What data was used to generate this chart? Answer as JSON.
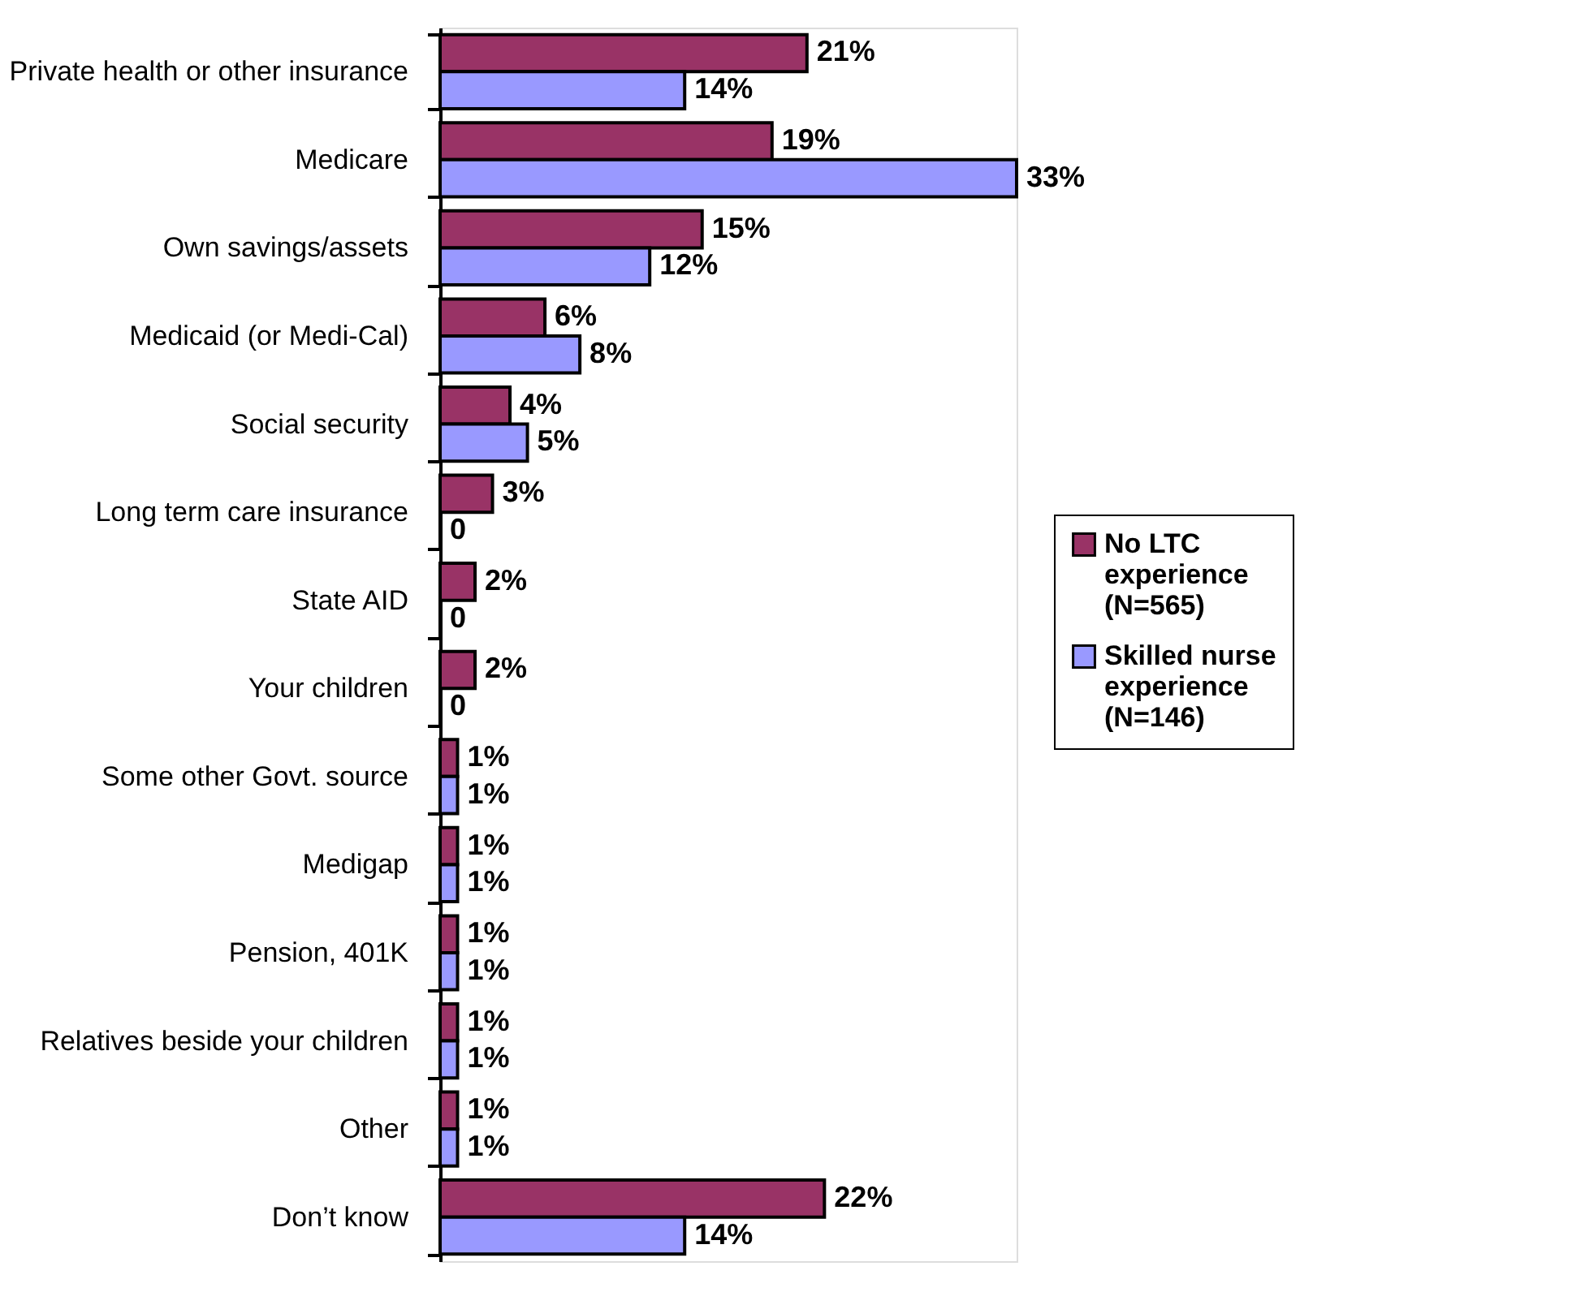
{
  "chart_data": {
    "type": "bar",
    "orientation": "horizontal",
    "categories": [
      "Private health or other insurance",
      "Medicare",
      "Own savings/assets",
      "Medicaid (or Medi-Cal)",
      "Social security",
      "Long term care insurance",
      "State AID",
      "Your children",
      "Some other Govt. source",
      "Medigap",
      "Pension, 401K",
      "Relatives beside your children",
      "Other",
      "Don’t know"
    ],
    "series": [
      {
        "name": "No LTC experience (N=565)",
        "color": "#993366",
        "values": [
          21,
          19,
          15,
          6,
          4,
          3,
          2,
          2,
          1,
          1,
          1,
          1,
          1,
          22
        ],
        "value_labels": [
          "21%",
          "19%",
          "15%",
          "6%",
          "4%",
          "3%",
          "2%",
          "2%",
          "1%",
          "1%",
          "1%",
          "1%",
          "1%",
          "22%"
        ]
      },
      {
        "name": "Skilled nurse experience (N=146)",
        "color": "#9999ff",
        "values": [
          14,
          33,
          12,
          8,
          5,
          0,
          0,
          0,
          1,
          1,
          1,
          1,
          1,
          14
        ],
        "value_labels": [
          "14%",
          "33%",
          "12%",
          "8%",
          "5%",
          "0",
          "0",
          "0",
          "1%",
          "1%",
          "1%",
          "1%",
          "1%",
          "14%"
        ]
      }
    ],
    "legend": "right",
    "grid": false,
    "tick_labels": "y"
  }
}
